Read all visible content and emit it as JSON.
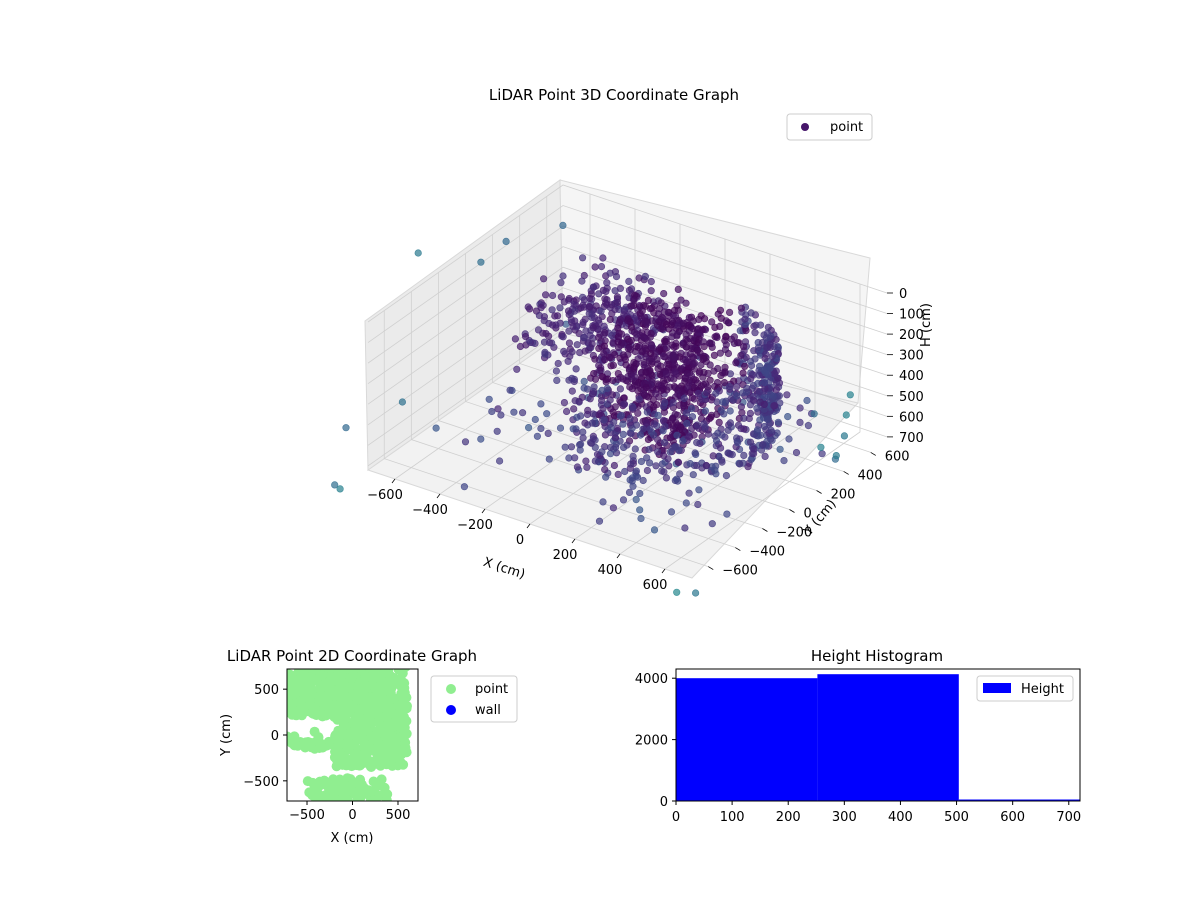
{
  "chart_data": [
    {
      "type": "scatter3d",
      "title": "LiDAR Point 3D Coordinate Graph",
      "xlabel": "X (cm)",
      "ylabel": "Y (cm)",
      "zlabel": "H (cm)",
      "xlim": [
        -720,
        720
      ],
      "ylim": [
        -720,
        720
      ],
      "zlim": [
        0,
        720
      ],
      "z_inverted": true,
      "xticks": [
        -600,
        -400,
        -200,
        0,
        200,
        400,
        600
      ],
      "yticks": [
        -600,
        -400,
        -200,
        0,
        200,
        400,
        600
      ],
      "zticks": [
        0,
        100,
        200,
        300,
        400,
        500,
        600,
        700
      ],
      "legend": {
        "entries": [
          "point"
        ],
        "placement": "top-right"
      },
      "colormap": "viridis",
      "grid": true
    },
    {
      "type": "scatter",
      "title": "LiDAR Point 2D Coordinate Graph",
      "xlabel": "X (cm)",
      "ylabel": "Y (cm)",
      "xlim": [
        -720,
        720
      ],
      "ylim": [
        -720,
        720
      ],
      "xticks": [
        -500,
        0,
        500
      ],
      "yticks": [
        -500,
        0,
        500
      ],
      "series": [
        {
          "name": "point",
          "color": "#90ee90"
        },
        {
          "name": "wall",
          "color": "#0000ff"
        }
      ],
      "legend": {
        "placement": "outside-right"
      }
    },
    {
      "type": "bar",
      "title": "Height Histogram",
      "xlim": [
        0,
        720
      ],
      "ylim": [
        0,
        4300
      ],
      "xticks": [
        0,
        100,
        200,
        300,
        400,
        500,
        600,
        700
      ],
      "yticks": [
        0,
        2000,
        4000
      ],
      "series": [
        {
          "name": "Height",
          "color": "#0000ff",
          "bins": [
            {
              "from": 0,
              "to": 252,
              "value": 4000
            },
            {
              "from": 252,
              "to": 504,
              "value": 4130
            },
            {
              "from": 504,
              "to": 720,
              "value": 50
            }
          ]
        }
      ],
      "legend": {
        "placement": "top-right"
      }
    }
  ]
}
